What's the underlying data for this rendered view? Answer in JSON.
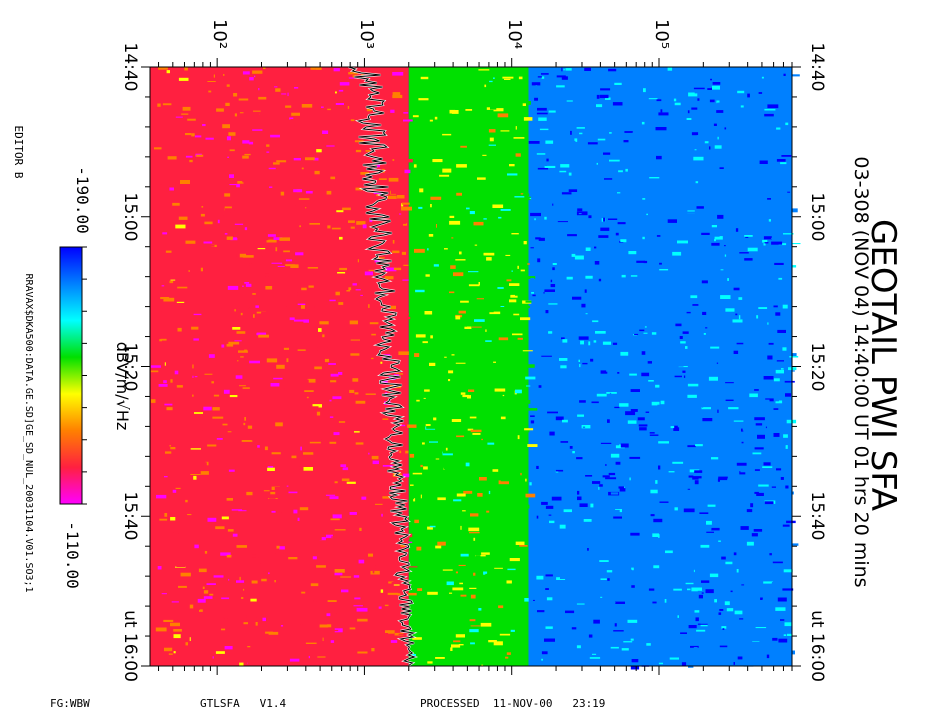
{
  "header": {
    "title": "GEOTAIL PWI SFA",
    "subtitle": "03-308 (NOV 04) 14:40:00 UT   01 hrs  20 mins"
  },
  "colorbar": {
    "unit": "dBV/m/√Hz",
    "min_label": "-190.00",
    "max_label": "-110.00",
    "stops": [
      "#ff00ff",
      "#ff2040",
      "#ff8000",
      "#ffff00",
      "#00e000",
      "#00ffff",
      "#0080ff",
      "#0000ff"
    ]
  },
  "left_notes": {
    "editor": "EDITOR B",
    "path": "RRAVAX$DKA500:DATA.GE.SD]GE_SD_NUL_20031104.V01.SO3;1"
  },
  "footer": {
    "fg": "FG:WBW",
    "program": "GTLSFA   V1.4",
    "processed": "PROCESSED  11-NOV-00   23:19"
  },
  "chart_data": {
    "type": "heatmap",
    "title": "GEOTAIL PWI SFA",
    "xscale": "log",
    "xlim": [
      35,
      800000
    ],
    "x_tick_labels": [
      "10²",
      "10³",
      "10⁴",
      "10⁵"
    ],
    "x_tick_values": [
      100,
      1000,
      10000,
      100000
    ],
    "time_tick_labels": [
      "14:40",
      "15:00",
      "15:20",
      "15:40",
      "ut 16:00"
    ],
    "time_range": [
      "14:40",
      "16:00"
    ],
    "bands": [
      {
        "from": 35,
        "to": 2000,
        "level": -125
      },
      {
        "from": 2000,
        "to": 13000,
        "level": -150
      },
      {
        "from": 13000,
        "to": 800000,
        "level": -180
      }
    ],
    "trace": {
      "color": "#000000",
      "freq_at_start": 1000,
      "freq_at_end": 2000
    }
  }
}
